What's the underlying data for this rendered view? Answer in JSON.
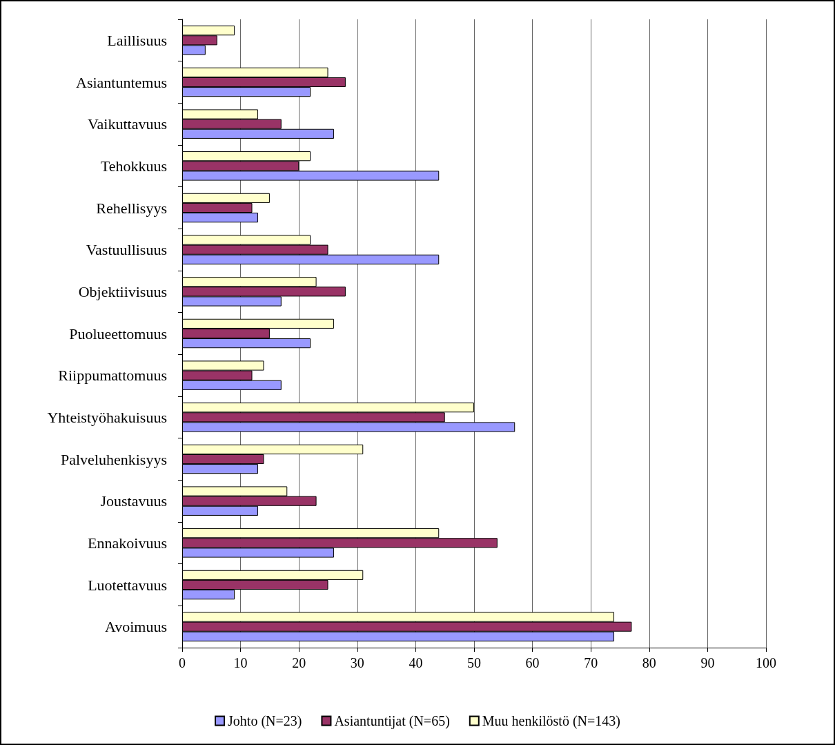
{
  "chart_data": {
    "type": "bar",
    "orientation": "horizontal",
    "categories": [
      "Laillisuus",
      "Asiantuntemus",
      "Vaikuttavuus",
      "Tehokkuus",
      "Rehellisyys",
      "Vastuullisuus",
      "Objektiivisuus",
      "Puolueettomuus",
      "Riippumattomuus",
      "Yhteistyöhakuisuus",
      "Palveluhenkisyys",
      "Joustavuus",
      "Ennakoivuus",
      "Luotettavuus",
      "Avoimuus"
    ],
    "series": [
      {
        "name": "Johto (N=23)",
        "color": "#9999ff",
        "values": [
          4,
          22,
          26,
          44,
          13,
          44,
          17,
          22,
          17,
          57,
          13,
          13,
          26,
          9,
          74
        ]
      },
      {
        "name": "Asiantuntijat (N=65)",
        "color": "#993366",
        "values": [
          6,
          28,
          17,
          20,
          12,
          25,
          28,
          15,
          12,
          45,
          14,
          23,
          54,
          25,
          77
        ]
      },
      {
        "name": "Muu henkilöstö (N=143)",
        "color": "#ffffcc",
        "values": [
          9,
          25,
          13,
          22,
          15,
          22,
          23,
          26,
          14,
          50,
          31,
          18,
          44,
          31,
          74
        ]
      }
    ],
    "xlim": [
      0,
      100
    ],
    "xticks": [
      0,
      10,
      20,
      30,
      40,
      50,
      60,
      70,
      80,
      90,
      100
    ],
    "grid": "x",
    "legend": "bottom"
  }
}
